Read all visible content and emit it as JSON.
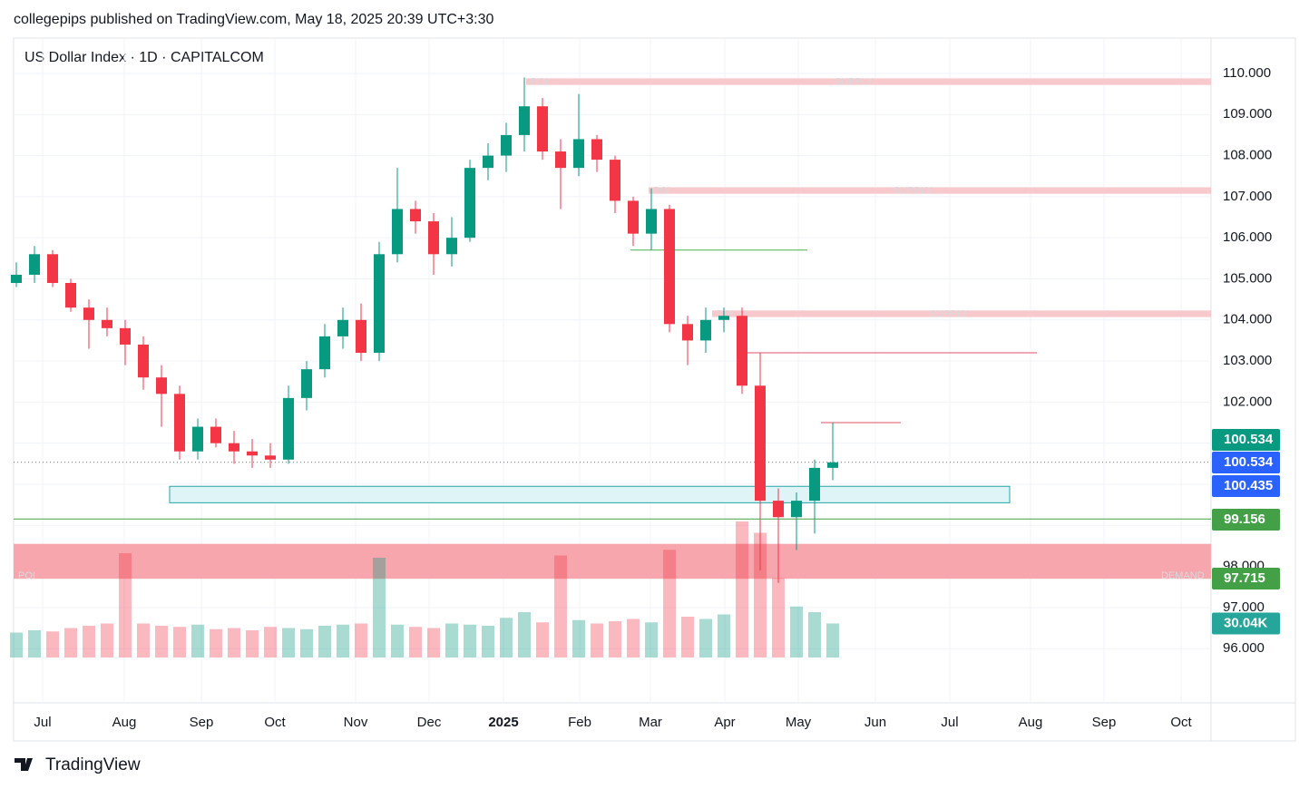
{
  "header": {
    "published": "collegepips published on TradingView.com, May 18, 2025 20:39 UTC+3:30",
    "brand": "TradingView"
  },
  "chart_data": {
    "type": "candlestick",
    "title": "US Dollar Index · 1D · CAPITALCOM",
    "x_labels": [
      "Jul",
      "Aug",
      "Sep",
      "Oct",
      "Nov",
      "Dec",
      "2025",
      "Feb",
      "Mar",
      "Apr",
      "May",
      "Jun",
      "Jul",
      "Aug",
      "Sep",
      "Oct"
    ],
    "open": [
      104.9,
      105.1,
      105.6,
      104.9,
      104.3,
      104.0,
      103.8,
      103.4,
      102.6,
      102.2,
      100.8,
      101.4,
      101.0,
      100.8,
      100.7,
      100.6,
      102.1,
      102.8,
      103.6,
      104.0,
      103.2,
      105.6,
      106.7,
      106.4,
      105.6,
      106.0,
      107.7,
      108.0,
      108.5,
      109.2,
      108.1,
      107.7,
      108.4,
      107.9,
      106.9,
      106.1,
      106.7,
      103.9,
      103.5,
      104.0,
      104.1,
      102.4,
      99.6,
      99.2,
      99.6,
      100.4
    ],
    "high": [
      105.4,
      105.8,
      105.7,
      105.0,
      104.5,
      104.3,
      104.0,
      103.6,
      102.9,
      102.4,
      101.6,
      101.6,
      101.3,
      101.1,
      101.0,
      102.4,
      103.0,
      103.9,
      104.3,
      104.4,
      105.9,
      107.7,
      106.9,
      106.6,
      106.5,
      107.9,
      108.3,
      108.8,
      109.9,
      109.4,
      108.4,
      109.5,
      108.5,
      108.0,
      107.0,
      107.2,
      106.8,
      104.1,
      104.3,
      104.3,
      104.3,
      103.2,
      99.9,
      99.8,
      100.6,
      101.5
    ],
    "low": [
      104.8,
      104.9,
      104.8,
      104.2,
      103.3,
      103.6,
      102.9,
      102.3,
      101.4,
      100.6,
      100.6,
      100.9,
      100.5,
      100.4,
      100.4,
      100.5,
      101.8,
      102.6,
      103.3,
      103.0,
      103.0,
      105.4,
      106.1,
      105.1,
      105.3,
      105.9,
      107.4,
      107.6,
      108.1,
      107.9,
      106.7,
      107.5,
      107.6,
      106.6,
      105.8,
      105.7,
      103.7,
      102.9,
      103.2,
      103.7,
      102.2,
      97.9,
      97.6,
      98.4,
      98.8,
      100.1
    ],
    "close": [
      105.1,
      105.6,
      104.9,
      104.3,
      104.0,
      103.8,
      103.4,
      102.6,
      102.2,
      100.8,
      101.4,
      101.0,
      100.8,
      100.7,
      100.6,
      102.1,
      102.8,
      103.6,
      104.0,
      103.2,
      105.6,
      106.7,
      106.4,
      105.6,
      106.0,
      107.7,
      108.0,
      108.5,
      109.2,
      108.1,
      107.7,
      108.4,
      107.9,
      106.9,
      106.1,
      106.7,
      103.9,
      103.5,
      104.0,
      104.1,
      102.4,
      99.6,
      99.2,
      99.6,
      100.4,
      100.534
    ],
    "up_color": "#089981",
    "down_color": "#f23645",
    "volume": {
      "name": "Volume",
      "values": [
        22,
        24,
        23,
        26,
        28,
        30,
        92,
        30,
        28,
        27,
        29,
        25,
        26,
        24,
        27,
        26,
        25,
        28,
        29,
        30,
        88,
        29,
        27,
        26,
        30,
        29,
        28,
        35,
        40,
        31,
        90,
        33,
        30,
        32,
        34,
        31,
        95,
        36,
        34,
        38,
        120,
        110,
        70,
        45,
        40,
        30.04
      ],
      "value_labels": [
        null,
        null,
        null,
        null,
        null,
        null,
        null,
        null,
        null,
        null,
        null,
        null,
        null,
        null,
        null,
        null,
        null,
        null,
        null,
        null,
        null,
        null,
        null,
        null,
        null,
        null,
        null,
        null,
        null,
        null,
        null,
        null,
        null,
        null,
        null,
        null,
        null,
        null,
        null,
        null,
        null,
        null,
        null,
        null,
        null,
        "30.04K"
      ],
      "badge_color": "#26a69a"
    },
    "ylim": [
      94.68,
      110.86
    ],
    "yticks": [
      {
        "value": 96,
        "label": "96.000"
      },
      {
        "value": 97,
        "label": "97.000"
      },
      {
        "value": 98,
        "label": "98.000"
      },
      {
        "value": 99,
        "label": "99.000"
      },
      {
        "value": 100,
        "label": "100.000"
      },
      {
        "value": 101,
        "label": "101.000"
      },
      {
        "value": 102,
        "label": "102.000"
      },
      {
        "value": 103,
        "label": "103.000"
      },
      {
        "value": 104,
        "label": "104.000"
      },
      {
        "value": 105,
        "label": "105.000"
      },
      {
        "value": 106,
        "label": "106.000"
      },
      {
        "value": 107,
        "label": "107.000"
      },
      {
        "value": 108,
        "label": "108.000"
      },
      {
        "value": 109,
        "label": "109.000"
      },
      {
        "value": 110,
        "label": "110.000"
      }
    ],
    "grid": true,
    "zones": [
      {
        "low": 109.72,
        "high": 109.88,
        "color": "#f7c9cc",
        "labels": [
          "POI",
          "SUPPLY"
        ]
      },
      {
        "low": 107.07,
        "high": 107.23,
        "color": "#f7c9cc",
        "labels": [
          "POI",
          "SUPPLY"
        ]
      },
      {
        "low": 104.07,
        "high": 104.23,
        "color": "#f7c9cc",
        "labels": [
          "POI",
          "SUPPLY"
        ]
      },
      {
        "low": 97.7,
        "high": 98.55,
        "color": "#f7a6ad",
        "labels": [
          "POI",
          "DEMAND"
        ]
      },
      {
        "low": 99.55,
        "high": 99.95,
        "color": "#dff4f6"
      }
    ],
    "lines": [
      {
        "value": 105.7,
        "color": "#4caf50"
      },
      {
        "value": 103.2,
        "color": "#e0506a"
      },
      {
        "value": 101.5,
        "color": "#e0506a"
      }
    ],
    "levels": [
      {
        "value": 100.534,
        "color": "#089981"
      },
      {
        "value": 100.534,
        "color": "#2962ff"
      },
      {
        "value": 100.435,
        "color": "#2962ff"
      },
      {
        "value": 99.156,
        "color": "#43a047"
      },
      {
        "value": 97.715,
        "color": "#43a047"
      }
    ]
  }
}
